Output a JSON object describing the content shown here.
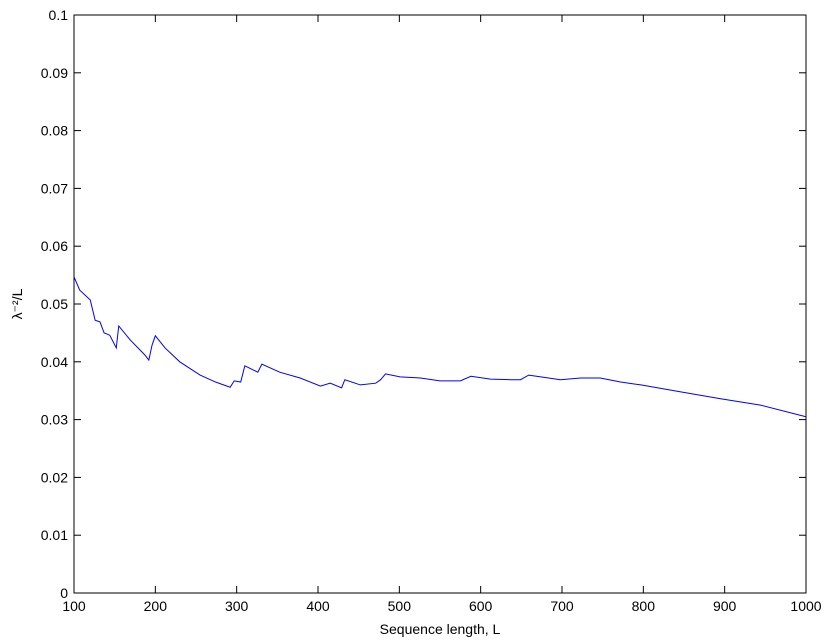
{
  "chart_data": {
    "type": "line",
    "xlabel": "Sequence length, L",
    "ylabel": "λ⁻²/L",
    "xlim": [
      100,
      1000
    ],
    "xticks": [
      100,
      200,
      300,
      400,
      500,
      600,
      700,
      800,
      900,
      1000
    ],
    "ylim": [
      0,
      0.1
    ],
    "yticks": [
      0,
      0.01,
      0.02,
      0.03,
      0.04,
      0.05,
      0.06,
      0.07,
      0.08,
      0.09,
      0.1
    ],
    "grid": false,
    "series": [
      {
        "color": "#0000ff",
        "x": [
          100,
          107,
          120,
          126,
          132,
          137,
          144,
          152,
          155,
          169,
          187,
          192,
          196,
          200,
          212,
          230,
          255,
          274,
          292,
          297,
          305,
          310,
          326,
          331,
          353,
          378,
          403,
          415,
          429,
          433,
          452,
          471,
          477,
          483,
          501,
          526,
          550,
          575,
          588,
          612,
          637,
          649,
          659,
          674,
          698,
          723,
          747,
          772,
          797,
          846,
          895,
          944,
          1000
        ],
        "values": [
          0.0547,
          0.0524,
          0.0507,
          0.0472,
          0.0469,
          0.045,
          0.0446,
          0.0424,
          0.0462,
          0.0438,
          0.0412,
          0.0403,
          0.0429,
          0.0445,
          0.0424,
          0.04,
          0.0377,
          0.0365,
          0.0356,
          0.0367,
          0.0365,
          0.0393,
          0.0382,
          0.0396,
          0.0382,
          0.0372,
          0.0358,
          0.0363,
          0.0355,
          0.0369,
          0.036,
          0.0363,
          0.0369,
          0.0379,
          0.0374,
          0.0372,
          0.0367,
          0.0367,
          0.0375,
          0.037,
          0.0369,
          0.0369,
          0.0377,
          0.0374,
          0.0369,
          0.0372,
          0.0372,
          0.0365,
          0.036,
          0.0348,
          0.0336,
          0.0325,
          0.0305
        ]
      }
    ]
  }
}
